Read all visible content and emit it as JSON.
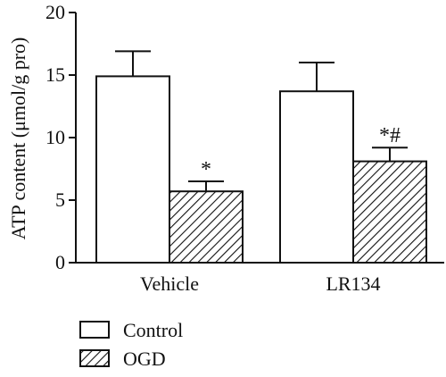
{
  "chart_data": {
    "type": "bar",
    "categories": [
      "Vehicle",
      "LR134"
    ],
    "series": [
      {
        "name": "Control",
        "values": [
          14.9,
          13.7
        ],
        "errors": [
          2.0,
          2.3
        ],
        "fill": "open"
      },
      {
        "name": "OGD",
        "values": [
          5.7,
          8.1
        ],
        "errors": [
          0.8,
          1.1
        ],
        "fill": "hatched"
      }
    ],
    "annotations": [
      {
        "category": "Vehicle",
        "series": "OGD",
        "text": "*"
      },
      {
        "category": "LR134",
        "series": "OGD",
        "text": "*#"
      }
    ],
    "title": "",
    "xlabel": "",
    "ylabel": "ATP content (μmol/g pro)",
    "ylim": [
      0,
      20
    ],
    "yticks": [
      0,
      5,
      10,
      15,
      20
    ],
    "grid": false,
    "legend": "bottom-left",
    "colors": {
      "stroke": "#111111",
      "background": "#ffffff"
    }
  }
}
